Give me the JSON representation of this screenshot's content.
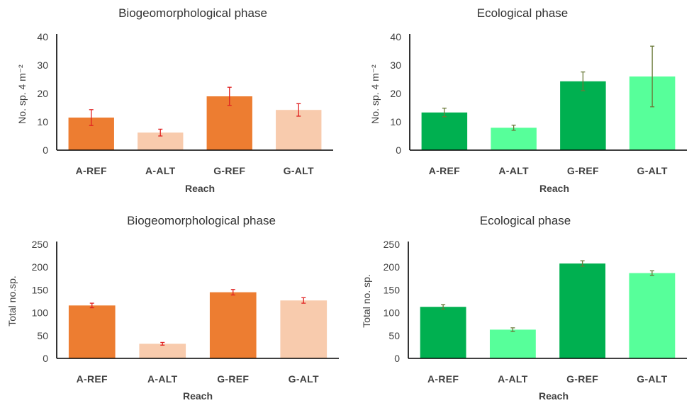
{
  "chart_data": [
    {
      "type": "bar",
      "title": "Biogeomorphological phase",
      "xlabel": "Reach",
      "ylabel": "No. sp. 4 m⁻²",
      "categories": [
        "A-REF",
        "A-ALT",
        "G-REF",
        "G-ALT"
      ],
      "values": [
        11.5,
        6.2,
        19.0,
        14.2
      ],
      "errors": [
        2.8,
        1.2,
        3.2,
        2.2
      ],
      "bar_colors": [
        "#ED7D31",
        "#F8CBAD",
        "#ED7D31",
        "#F8CBAD"
      ],
      "error_color": "#E02020",
      "ylim": [
        0,
        40
      ],
      "yticks": [
        0,
        10,
        20,
        30,
        40
      ]
    },
    {
      "type": "bar",
      "title": "Ecological phase",
      "xlabel": "Reach",
      "ylabel": "No. sp. 4 m⁻²",
      "categories": [
        "A-REF",
        "A-ALT",
        "G-REF",
        "G-ALT"
      ],
      "values": [
        13.3,
        7.9,
        24.3,
        26.0
      ],
      "errors": [
        1.5,
        0.9,
        3.3,
        10.7
      ],
      "bar_colors": [
        "#00B050",
        "#57FF9A",
        "#00B050",
        "#57FF9A"
      ],
      "error_color": "#6B7A3A",
      "ylim": [
        0,
        40
      ],
      "yticks": [
        0,
        10,
        20,
        30,
        40
      ]
    },
    {
      "type": "bar",
      "title": "Biogeomorphological phase",
      "xlabel": "Reach",
      "ylabel": "Total no.sp.",
      "categories": [
        "A-REF",
        "A-ALT",
        "G-REF",
        "G-ALT"
      ],
      "values": [
        116,
        32,
        145,
        127
      ],
      "errors": [
        5,
        3,
        6,
        6
      ],
      "bar_colors": [
        "#ED7D31",
        "#F8CBAD",
        "#ED7D31",
        "#F8CBAD"
      ],
      "error_color": "#E02020",
      "ylim": [
        0,
        250
      ],
      "yticks": [
        0,
        50,
        100,
        150,
        200,
        250
      ]
    },
    {
      "type": "bar",
      "title": "Ecological phase",
      "xlabel": "Reach",
      "ylabel": "Total no. sp.",
      "categories": [
        "A-REF",
        "A-ALT",
        "G-REF",
        "G-ALT"
      ],
      "values": [
        113,
        63,
        208,
        187
      ],
      "errors": [
        5,
        4,
        6,
        5
      ],
      "bar_colors": [
        "#00B050",
        "#57FF9A",
        "#00B050",
        "#57FF9A"
      ],
      "error_color": "#6B7A3A",
      "ylim": [
        0,
        250
      ],
      "yticks": [
        0,
        50,
        100,
        150,
        200,
        250
      ]
    }
  ]
}
